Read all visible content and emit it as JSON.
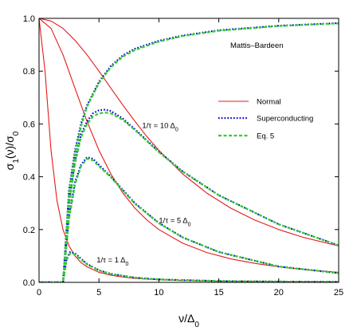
{
  "chart_data": {
    "type": "line",
    "title": "",
    "xlabel": "ν/Δ₀",
    "ylabel": "σ₁(ν)/σ₀",
    "xlim": [
      0,
      25
    ],
    "ylim": [
      0,
      1.0
    ],
    "xticks": [
      0,
      5,
      10,
      15,
      20,
      25
    ],
    "yticks": [
      0,
      0.2,
      0.4,
      0.6,
      0.8,
      1.0
    ],
    "xtick_labels": [
      "0",
      "5",
      "10",
      "15",
      "20",
      "25"
    ],
    "ytick_labels": [
      "0.0",
      "0.2",
      "0.4",
      "0.6",
      "0.8",
      "1.0"
    ],
    "grid": false,
    "legend_position": "upper-right",
    "corner_label": "Mattis–Bardeen",
    "colors": {
      "normal": "#e41a1c",
      "superconducting": "#0000cc",
      "eq5": "#33cc33"
    },
    "series": [
      {
        "name": "Normal",
        "style": "solid",
        "curves": [
          {
            "scattering": "1/τ = ∞",
            "x": [
              0,
              25
            ],
            "y": [
              1.0,
              1.0
            ]
          },
          {
            "scattering": "1/τ = 10 Δ0",
            "x": [
              0,
              1,
              2,
              3,
              4,
              5,
              6,
              7,
              8,
              9,
              10,
              12,
              14,
              16,
              18,
              20,
              22,
              25
            ],
            "y": [
              1.0,
              0.99,
              0.962,
              0.917,
              0.862,
              0.8,
              0.735,
              0.671,
              0.61,
              0.552,
              0.5,
              0.41,
              0.338,
              0.281,
              0.236,
              0.2,
              0.171,
              0.138
            ]
          },
          {
            "scattering": "1/τ = 5 Δ0",
            "x": [
              0,
              1,
              2,
              3,
              4,
              5,
              6,
              7,
              8,
              9,
              10,
              12,
              14,
              16,
              18,
              20,
              22,
              25
            ],
            "y": [
              1.0,
              0.962,
              0.862,
              0.735,
              0.61,
              0.5,
              0.41,
              0.338,
              0.281,
              0.236,
              0.2,
              0.148,
              0.113,
              0.089,
              0.072,
              0.059,
              0.049,
              0.038
            ]
          },
          {
            "scattering": "1/τ = 1 Δ0",
            "x": [
              0,
              0.5,
              1,
              1.5,
              2,
              2.5,
              3,
              3.5,
              4,
              5,
              6,
              7,
              8,
              10,
              12,
              15,
              20,
              25
            ],
            "y": [
              1.0,
              0.8,
              0.5,
              0.308,
              0.2,
              0.138,
              0.1,
              0.075,
              0.059,
              0.038,
              0.027,
              0.02,
              0.015,
              0.0099,
              0.0069,
              0.0044,
              0.0025,
              0.0016
            ]
          }
        ]
      },
      {
        "name": "Superconducting",
        "style": "dotted",
        "curves": [
          {
            "scattering": "1/τ = ∞",
            "x": [
              0,
              2,
              2.5,
              3,
              3.5,
              4,
              5,
              6,
              7,
              8,
              10,
              12,
              15,
              20,
              25
            ],
            "y": [
              0,
              0,
              0.35,
              0.5,
              0.6,
              0.67,
              0.76,
              0.82,
              0.86,
              0.885,
              0.915,
              0.935,
              0.955,
              0.972,
              0.982
            ]
          },
          {
            "scattering": "1/τ = 10 Δ0",
            "x": [
              0,
              2,
              2.5,
              3,
              3.5,
              4,
              4.5,
              5,
              5.5,
              6,
              7,
              8,
              10,
              12,
              15,
              20,
              25
            ],
            "y": [
              0,
              0,
              0.3,
              0.46,
              0.56,
              0.61,
              0.64,
              0.652,
              0.654,
              0.649,
              0.62,
              0.58,
              0.495,
              0.42,
              0.33,
              0.22,
              0.14
            ]
          },
          {
            "scattering": "1/τ = 5 Δ0",
            "x": [
              0,
              2,
              2.5,
              3,
              3.5,
              4,
              4.5,
              5,
              6,
              7,
              8,
              10,
              12,
              15,
              20,
              25
            ],
            "y": [
              0,
              0,
              0.25,
              0.38,
              0.445,
              0.474,
              0.468,
              0.445,
              0.4,
              0.35,
              0.3,
              0.225,
              0.17,
              0.115,
              0.06,
              0.035
            ]
          },
          {
            "scattering": "1/τ = 1 Δ0",
            "x": [
              0,
              2,
              2.3,
              2.6,
              3,
              3.5,
              4,
              5,
              6,
              8,
              10,
              15,
              20,
              25
            ],
            "y": [
              0,
              0,
              0.09,
              0.115,
              0.11,
              0.09,
              0.07,
              0.046,
              0.032,
              0.018,
              0.011,
              0.005,
              0.003,
              0.002
            ]
          }
        ]
      },
      {
        "name": "Eq. 5",
        "style": "dashed",
        "curves": [
          {
            "scattering": "1/τ = ∞",
            "x": [
              0,
              2,
              2.5,
              3,
              3.5,
              4,
              5,
              6,
              7,
              8,
              10,
              12,
              15,
              20,
              25
            ],
            "y": [
              0,
              0,
              0.34,
              0.49,
              0.59,
              0.665,
              0.755,
              0.815,
              0.855,
              0.88,
              0.912,
              0.933,
              0.953,
              0.971,
              0.981
            ]
          },
          {
            "scattering": "1/τ = 10 Δ0",
            "x": [
              0,
              2,
              2.5,
              3,
              3.5,
              4,
              4.5,
              5,
              5.5,
              6,
              7,
              8,
              10,
              12,
              15,
              20,
              25
            ],
            "y": [
              0,
              0,
              0.29,
              0.45,
              0.55,
              0.6,
              0.628,
              0.64,
              0.643,
              0.64,
              0.615,
              0.577,
              0.493,
              0.419,
              0.33,
              0.22,
              0.14
            ]
          },
          {
            "scattering": "1/τ = 5 Δ0",
            "x": [
              0,
              2,
              2.5,
              3,
              3.5,
              4,
              4.5,
              5,
              6,
              7,
              8,
              10,
              12,
              15,
              20,
              25
            ],
            "y": [
              0,
              0,
              0.24,
              0.37,
              0.44,
              0.468,
              0.462,
              0.44,
              0.398,
              0.348,
              0.298,
              0.224,
              0.17,
              0.115,
              0.06,
              0.035
            ]
          },
          {
            "scattering": "1/τ = 1 Δ0",
            "x": [
              0,
              2,
              2.3,
              2.6,
              3,
              3.5,
              4,
              5,
              6,
              8,
              10,
              15,
              20,
              25
            ],
            "y": [
              0,
              0,
              0.085,
              0.11,
              0.105,
              0.087,
              0.068,
              0.045,
              0.031,
              0.018,
              0.011,
              0.005,
              0.003,
              0.002
            ]
          }
        ]
      }
    ],
    "annotations": [
      {
        "id": "tau10",
        "prefix": "1/τ = 10 Δ",
        "sub": "0",
        "x": 8.6,
        "y": 0.585
      },
      {
        "id": "tau5",
        "prefix": "1/τ = 5 Δ",
        "sub": "0",
        "x": 10,
        "y": 0.225
      },
      {
        "id": "tau1",
        "prefix": "1/τ = 1 Δ",
        "sub": "0",
        "x": 4.8,
        "y": 0.075
      }
    ]
  }
}
